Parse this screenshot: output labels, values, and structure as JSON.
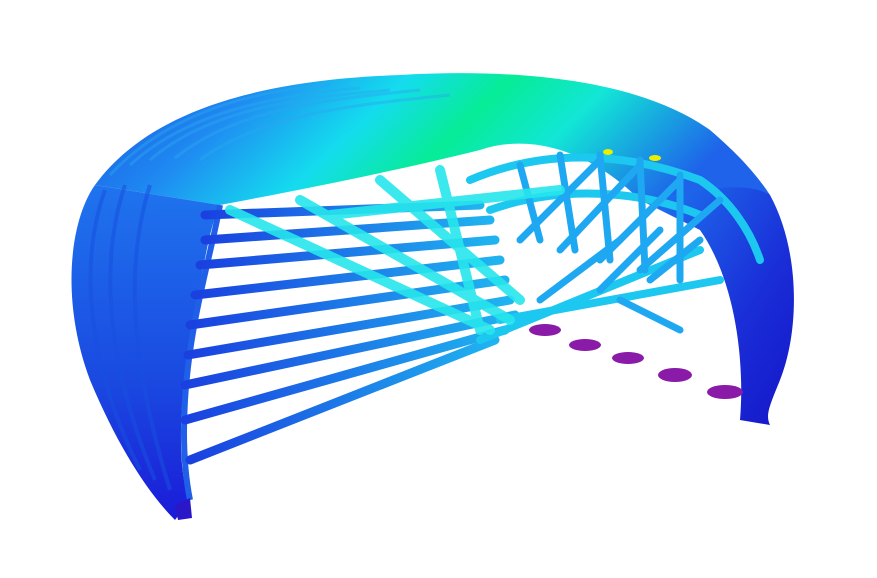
{
  "scene": {
    "subject": "arched-truss-shell-structure",
    "colormap": [
      "#8a0fa8",
      "#1a1adf",
      "#1e6ff0",
      "#19c8f0",
      "#10f0e0",
      "#00e88a",
      "#f2f200"
    ],
    "background": "#ffffff"
  }
}
